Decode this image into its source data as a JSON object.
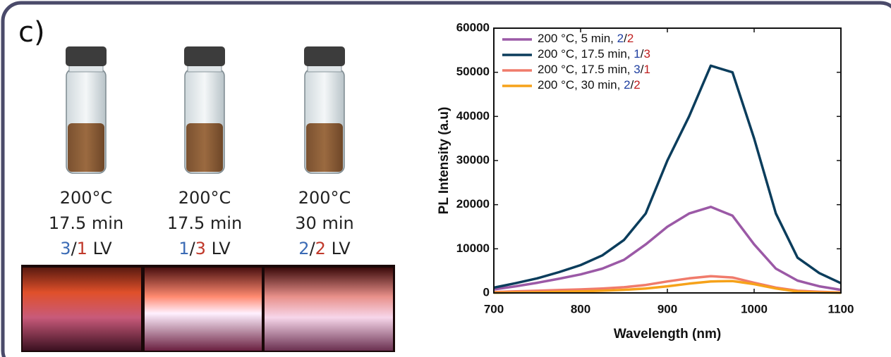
{
  "panel_label": "c)",
  "vials": [
    {
      "lines": [
        "200°C",
        "17.5 min",
        "3/1 LV"
      ]
    },
    {
      "lines": [
        "200°C",
        "17.5 min",
        "1/3 LV"
      ]
    },
    {
      "lines": [
        "200°C",
        "30 min",
        "2/2 LV"
      ]
    }
  ],
  "chart_data": {
    "type": "line",
    "x_label": "Wavelength (nm)",
    "y_label": "PL Intensity (a.u)",
    "x": [
      700,
      725,
      750,
      775,
      800,
      825,
      850,
      875,
      900,
      925,
      950,
      975,
      1000,
      1025,
      1050,
      1075,
      1100
    ],
    "series": [
      {
        "name": "200 °C, 5 min, 2/2",
        "color": "#9b59a6",
        "values": [
          800,
          1500,
          2300,
          3200,
          4200,
          5500,
          7500,
          11000,
          15000,
          18000,
          19500,
          17500,
          11000,
          5500,
          2800,
          1500,
          700
        ]
      },
      {
        "name": "200 °C, 17.5 min, 1/3",
        "color": "#0b3d5c",
        "values": [
          1200,
          2200,
          3300,
          4700,
          6300,
          8500,
          12000,
          18000,
          30000,
          40000,
          51500,
          50000,
          35000,
          18000,
          8000,
          4500,
          2200
        ]
      },
      {
        "name": "200 °C, 17.5 min, 3/1",
        "color": "#f07b6b",
        "values": [
          200,
          350,
          500,
          650,
          800,
          1000,
          1300,
          1800,
          2600,
          3300,
          3800,
          3500,
          2300,
          1200,
          500,
          250,
          100
        ]
      },
      {
        "name": "200 °C, 30 min, 2/2",
        "color": "#f6a21a",
        "values": [
          50,
          100,
          150,
          250,
          350,
          500,
          700,
          1000,
          1500,
          2100,
          2600,
          2700,
          2000,
          1000,
          300,
          100,
          30
        ]
      }
    ],
    "xlim": [
      700,
      1100
    ],
    "xticks": [
      700,
      800,
      900,
      1000,
      1100
    ],
    "ylim": [
      0,
      60000
    ],
    "yticks": [
      0,
      10000,
      20000,
      30000,
      40000,
      50000,
      60000
    ],
    "grid": false,
    "legend": "upper-left"
  }
}
